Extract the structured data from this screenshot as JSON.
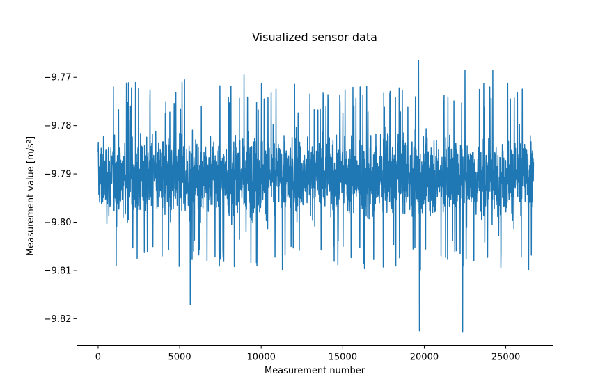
{
  "chart_data": {
    "type": "line",
    "title": "Visualized sensor data",
    "xlabel": "Measurement number",
    "ylabel": "Measurement value [m/s²]",
    "xlim": [
      -1300,
      27900
    ],
    "ylim": [
      -9.8255,
      -9.7637
    ],
    "x_ticks": [
      0,
      5000,
      10000,
      15000,
      20000,
      25000
    ],
    "y_ticks": [
      -9.77,
      -9.78,
      -9.79,
      -9.8,
      -9.81,
      -9.82
    ],
    "x_tick_labels": [
      "0",
      "5000",
      "10000",
      "15000",
      "20000",
      "25000"
    ],
    "y_tick_labels": [
      "−9.77",
      "−9.78",
      "−9.79",
      "−9.80",
      "−9.81",
      "−9.82"
    ],
    "grid": false,
    "series": [
      {
        "color": "#1f77b4",
        "x_range": [
          0,
          26700
        ],
        "sample_count": 26700,
        "mean": -9.7905,
        "typical_band": [
          -9.8035,
          -9.7775
        ],
        "extremes": [
          {
            "x": 5300,
            "y": -9.7705
          },
          {
            "x": 5650,
            "y": -9.817
          },
          {
            "x": 8950,
            "y": -9.7695
          },
          {
            "x": 19650,
            "y": -9.7665
          },
          {
            "x": 19700,
            "y": -9.8225
          },
          {
            "x": 22350,
            "y": -9.8228
          },
          {
            "x": 22500,
            "y": -9.7685
          },
          {
            "x": 24200,
            "y": -9.7685
          }
        ]
      }
    ]
  }
}
